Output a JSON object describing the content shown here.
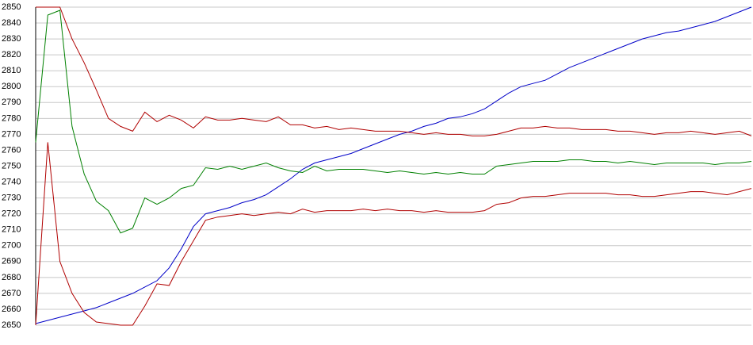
{
  "chart_data": {
    "type": "line",
    "categories": [
      null,
      null,
      null,
      null,
      null,
      null,
      null,
      null,
      null,
      null,
      null,
      null,
      null,
      null,
      null,
      null,
      null,
      null,
      null,
      null,
      null,
      null,
      null,
      null,
      null,
      null,
      null,
      null,
      null,
      null,
      null,
      null,
      null,
      null,
      null,
      null,
      null,
      null,
      null,
      null,
      null,
      null,
      null,
      null,
      null,
      null,
      null,
      null,
      null,
      null,
      null,
      null,
      null,
      null,
      null,
      null,
      null,
      null,
      null,
      null
    ],
    "series": [
      {
        "color": "#0000c8",
        "values": [
          2651,
          2653,
          2655,
          2657,
          2659,
          2661,
          2664,
          2667,
          2670,
          2674,
          2678,
          2686,
          2698,
          2712,
          2720,
          2722,
          2724,
          2727,
          2729,
          2732,
          2737,
          2742,
          2748,
          2752,
          2754,
          2756,
          2758,
          2761,
          2764,
          2767,
          2770,
          2772,
          2775,
          2777,
          2780,
          2781,
          2783,
          2786,
          2791,
          2796,
          2800,
          2802,
          2804,
          2808,
          2812,
          2815,
          2818,
          2821,
          2824,
          2827,
          2830,
          2832,
          2834,
          2835,
          2837,
          2839,
          2841,
          2844,
          2847,
          2850
        ]
      },
      {
        "color": "#b00000",
        "values": [
          2850,
          2850,
          2850,
          2830,
          2815,
          2798,
          2780,
          2775,
          2772,
          2784,
          2778,
          2782,
          2779,
          2774,
          2781,
          2779,
          2779,
          2780,
          2779,
          2778,
          2781,
          2776,
          2776,
          2774,
          2775,
          2773,
          2774,
          2773,
          2772,
          2772,
          2772,
          2771,
          2770,
          2771,
          2770,
          2770,
          2769,
          2769,
          2770,
          2772,
          2774,
          2774,
          2775,
          2774,
          2774,
          2773,
          2773,
          2773,
          2772,
          2772,
          2771,
          2770,
          2771,
          2771,
          2772,
          2771,
          2770,
          2771,
          2772,
          2769
        ]
      },
      {
        "color": "#008000",
        "values": [
          2765,
          2845,
          2848,
          2775,
          2745,
          2728,
          2722,
          2708,
          2711,
          2730,
          2726,
          2730,
          2736,
          2738,
          2749,
          2748,
          2750,
          2748,
          2750,
          2752,
          2749,
          2747,
          2746,
          2750,
          2747,
          2748,
          2748,
          2748,
          2747,
          2746,
          2747,
          2746,
          2745,
          2746,
          2745,
          2746,
          2745,
          2745,
          2750,
          2751,
          2752,
          2753,
          2753,
          2753,
          2754,
          2754,
          2753,
          2753,
          2752,
          2753,
          2752,
          2751,
          2752,
          2752,
          2752,
          2752,
          2751,
          2752,
          2752,
          2753
        ]
      },
      {
        "color": "#b00000",
        "values": [
          2650,
          2765,
          2690,
          2670,
          2658,
          2652,
          2651,
          2650,
          2650,
          2662,
          2676,
          2675,
          2690,
          2703,
          2716,
          2718,
          2719,
          2720,
          2719,
          2720,
          2721,
          2720,
          2723,
          2721,
          2722,
          2722,
          2722,
          2723,
          2722,
          2723,
          2722,
          2722,
          2721,
          2722,
          2721,
          2721,
          2721,
          2722,
          2726,
          2727,
          2730,
          2731,
          2731,
          2732,
          2733,
          2733,
          2733,
          2733,
          2732,
          2732,
          2731,
          2731,
          2732,
          2733,
          2734,
          2734,
          2733,
          2732,
          2734,
          2736
        ]
      }
    ],
    "ylim": [
      2650,
      2850
    ],
    "yticks": [
      2650,
      2660,
      2670,
      2680,
      2690,
      2700,
      2710,
      2720,
      2730,
      2740,
      2750,
      2760,
      2770,
      2780,
      2790,
      2800,
      2810,
      2820,
      2830,
      2840,
      2850
    ],
    "grid": true
  }
}
